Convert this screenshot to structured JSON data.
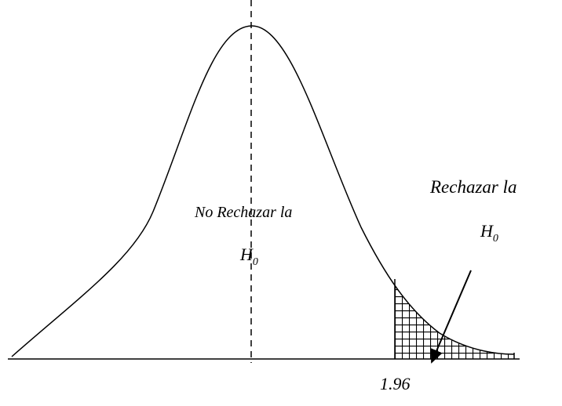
{
  "labels": {
    "accept": "No Rechazar la",
    "accept_h": "H",
    "accept_sub": "0",
    "reject": "Rechazar la",
    "reject_h": "H",
    "reject_sub": "0",
    "critical": "1.96"
  }
}
